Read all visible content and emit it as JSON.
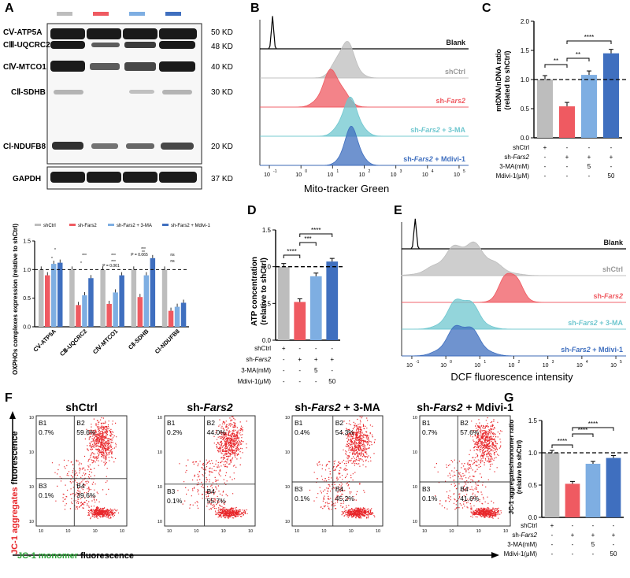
{
  "colors": {
    "shCtrl": "#bdbdbd",
    "shFars2": "#ef5a61",
    "ma3": "#7eaee2",
    "mdivi": "#3f6fbf",
    "blotBg": "#f7f7f7",
    "band": "#1a1a1a",
    "dot": "#e8262a",
    "teal": "#6fc7cf"
  },
  "panels": {
    "A": {
      "letter": "A",
      "blot_labels": [
        "CⅤ-ATP5A",
        "CⅢ-UQCRC2",
        "CⅣ-MTCO1",
        "CⅡ-SDHB",
        "CⅠ-NDUFB8",
        "GAPDH"
      ],
      "blot_kd": [
        "50 KD",
        "48 KD",
        "40 KD",
        "30 KD",
        "20 KD",
        "37 KD"
      ],
      "legend": [
        "shCtrl",
        "sh-Fars2",
        "sh-Fars2 + 3-MA",
        "sh-Fars2 + Mdivi-1"
      ],
      "sig": [
        "*",
        "*",
        "***",
        "*",
        "***",
        "***",
        "P = 0.061",
        "***",
        "P = 0.065",
        "**",
        "ns",
        "ns"
      ]
    },
    "B": {
      "letter": "B",
      "xlabel": "Mito-tracker Green",
      "samples": [
        "Blank",
        "shCtrl",
        "sh-Fars2",
        "sh-Fars2 + 3-MA",
        "sh-Fars2 + Mdivi-1"
      ]
    },
    "C": {
      "letter": "C",
      "sig": [
        "**",
        "**",
        "****"
      ]
    },
    "D": {
      "letter": "D",
      "sig": [
        "****",
        "***",
        "****"
      ]
    },
    "E": {
      "letter": "E",
      "xlabel": "DCF fluorescence intensity",
      "samples": [
        "Blank",
        "shCtrl",
        "sh-Fars2",
        "sh-Fars2 + 3-MA",
        "sh-Fars2 + Mdivi-1"
      ]
    },
    "F": {
      "letter": "F",
      "titles": [
        "shCtrl",
        "sh-Fars2",
        "sh-Fars2 + 3-MA",
        "sh-Fars2 + Mdivi-1"
      ],
      "quadrant_names": [
        "B1",
        "B2",
        "B3",
        "B4"
      ],
      "quadrants": [
        [
          "0.7%",
          "59.6%",
          "0.1%",
          "39.6%"
        ],
        [
          "0.2%",
          "44.0%",
          "0.1%",
          "55.7%"
        ],
        [
          "0.4%",
          "54.3%",
          "0.1%",
          "45.2%"
        ],
        [
          "0.7%",
          "57.6%",
          "0.1%",
          "41.6%"
        ]
      ],
      "ylabel_red": "JC-1 aggregates",
      "ylabel_black": "fluorescence",
      "xlabel_green": "JC-1 monomer",
      "xlabel_black": "fluorescence"
    },
    "G": {
      "letter": "G",
      "sig": [
        "****",
        "****",
        "****"
      ]
    }
  },
  "treatment_table": {
    "rows": [
      "shCtrl",
      "sh-Fars2",
      "3-MA(mM)",
      "Mdivi-1(μM)"
    ],
    "values": [
      [
        "+",
        "-",
        "-",
        "-"
      ],
      [
        "-",
        "+",
        "+",
        "+"
      ],
      [
        "-",
        "-",
        "5",
        "-"
      ],
      [
        "-",
        "-",
        "-",
        "50"
      ]
    ]
  },
  "chart_data": [
    {
      "panel": "A",
      "type": "bar",
      "ylabel": "OXPHOs complexes expression (relative to shCtrl)",
      "ylim": [
        0,
        1.5
      ],
      "yticks": [
        "0.0",
        "0.5",
        "1.0",
        "1.5"
      ],
      "categories": [
        "CⅤ-ATP5A",
        "CⅢ-UQCRC2",
        "CⅣ-MTCO1",
        "CⅡ-SDHB",
        "CⅠ-NDUFB8"
      ],
      "series": [
        {
          "name": "shCtrl",
          "values": [
            1.0,
            1.0,
            1.0,
            1.0,
            1.0
          ]
        },
        {
          "name": "sh-Fars2",
          "values": [
            0.9,
            0.38,
            0.4,
            0.52,
            0.28
          ]
        },
        {
          "name": "sh-Fars2 + 3-MA",
          "values": [
            1.1,
            0.55,
            0.6,
            0.9,
            0.35
          ]
        },
        {
          "name": "sh-Fars2 + Mdivi-1",
          "values": [
            1.12,
            0.85,
            0.9,
            1.2,
            0.42
          ]
        }
      ],
      "reference_line": 1.0
    },
    {
      "panel": "C",
      "type": "bar",
      "ylabel": "mtDNA/nDNA ratio (related to shCtrl)",
      "ylim": [
        0,
        2.0
      ],
      "yticks": [
        "0.0",
        "0.5",
        "1.0",
        "1.5",
        "2.0"
      ],
      "values": [
        1.0,
        0.54,
        1.08,
        1.45
      ],
      "reference_line": 1.0
    },
    {
      "panel": "D",
      "type": "bar",
      "ylabel": "ATP concentration (relative to shCtrl)",
      "ylim": [
        0,
        1.5
      ],
      "yticks": [
        "0.0",
        "0.5",
        "1.0",
        "1.5"
      ],
      "values": [
        1.0,
        0.52,
        0.87,
        1.07
      ],
      "reference_line": 1.0
    },
    {
      "panel": "G",
      "type": "bar",
      "ylabel": "JC-1 aggregates/monomer ratio (relative to shCtrl)",
      "ylim": [
        0,
        1.5
      ],
      "yticks": [
        "0.0",
        "0.5",
        "1.0",
        "1.5"
      ],
      "values": [
        1.0,
        0.52,
        0.83,
        0.92
      ],
      "reference_line": 1.0
    },
    {
      "panel": "B",
      "type": "area",
      "xlabel": "Mito-tracker Green",
      "xscale": "log",
      "xticks": [
        "10",
        "10",
        "10",
        "10",
        "10",
        "10",
        "10"
      ],
      "xtick_exponents": [
        "-1",
        "0",
        "1",
        "2",
        "3",
        "4",
        "5"
      ],
      "series": [
        {
          "name": "Blank",
          "peak_log": -0.9
        },
        {
          "name": "shCtrl",
          "peak_log": 1.4
        },
        {
          "name": "sh-Fars2",
          "peak_log": 1.0
        },
        {
          "name": "sh-Fars2 + 3-MA",
          "peak_log": 1.55
        },
        {
          "name": "sh-Fars2 + Mdivi-1",
          "peak_log": 1.6
        }
      ]
    },
    {
      "panel": "E",
      "type": "area",
      "xlabel": "DCF fluorescence intensity",
      "xscale": "log",
      "xticks": [
        "10",
        "10",
        "10",
        "10",
        "10",
        "10",
        "10"
      ],
      "xtick_exponents": [
        "-1",
        "0",
        "1",
        "2",
        "3",
        "4",
        "5"
      ],
      "series": [
        {
          "name": "Blank",
          "peak_log": -0.9
        },
        {
          "name": "shCtrl",
          "peak_log": 0.6
        },
        {
          "name": "sh-Fars2",
          "peak_log": 1.9
        },
        {
          "name": "sh-Fars2 + 3-MA",
          "peak_log": 0.5
        },
        {
          "name": "sh-Fars2 + Mdivi-1",
          "peak_log": 0.5
        }
      ]
    }
  ]
}
